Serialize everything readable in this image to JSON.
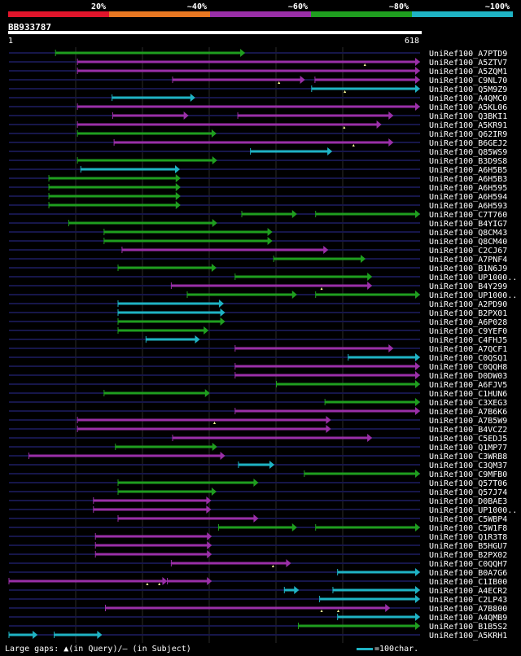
{
  "colors": {
    "background": "#000000",
    "identity_20": "#e0152b",
    "identity_40": "#e87722",
    "identity_60": "#9a2fa8",
    "identity_80": "#1f9e1f",
    "identity_100": "#1fb3c4",
    "track": "#16164a",
    "text": "#ffffff",
    "gap_marker": "#ffff99",
    "grid": "#2a2a2a"
  },
  "header": {
    "bands": [
      "20%",
      "~40%",
      "~60%",
      "~80%",
      "~100%"
    ],
    "query_id": "BB933787",
    "ruler_start": "1",
    "ruler_end": "618"
  },
  "query_length": 618,
  "hits": [
    {
      "id": "UniRef100_A7PTD9",
      "color": "green",
      "segs": [
        [
          70,
          355
        ]
      ],
      "gaps": []
    },
    {
      "id": "UniRef100_A5ZTV7",
      "color": "purple",
      "segs": [
        [
          103,
          618
        ]
      ],
      "gaps": [
        535
      ]
    },
    {
      "id": "UniRef100_A5ZQM1",
      "color": "purple",
      "segs": [
        [
          103,
          618
        ]
      ],
      "gaps": []
    },
    {
      "id": "UniRef100_C9NL70",
      "color": "purple",
      "segs": [
        [
          246,
          445
        ],
        [
          460,
          618
        ]
      ],
      "gaps": [
        406
      ]
    },
    {
      "id": "UniRef100_Q5M9Z9",
      "color": "cyan",
      "segs": [
        [
          455,
          618
        ]
      ],
      "gaps": [
        505
      ]
    },
    {
      "id": "UniRef100_A4QMC0",
      "color": "cyan",
      "segs": [
        [
          155,
          280
        ]
      ],
      "gaps": []
    },
    {
      "id": "UniRef100_A5KL06",
      "color": "purple",
      "segs": [
        [
          103,
          618
        ]
      ],
      "gaps": []
    },
    {
      "id": "UniRef100_Q3BKI1",
      "color": "purple",
      "segs": [
        [
          156,
          270
        ],
        [
          344,
          578
        ]
      ],
      "gaps": []
    },
    {
      "id": "UniRef100_A5KR91",
      "color": "purple",
      "segs": [
        [
          103,
          560
        ]
      ],
      "gaps": [
        504
      ]
    },
    {
      "id": "UniRef100_Q62IR9",
      "color": "green",
      "segs": [
        [
          103,
          312
        ]
      ],
      "gaps": []
    },
    {
      "id": "UniRef100_B6GEJ2",
      "color": "purple",
      "segs": [
        [
          158,
          578
        ]
      ],
      "gaps": [
        518
      ]
    },
    {
      "id": "UniRef100_Q85WS9",
      "color": "cyan",
      "segs": [
        [
          363,
          486
        ]
      ],
      "gaps": []
    },
    {
      "id": "UniRef100_B3D9S8",
      "color": "green",
      "segs": [
        [
          103,
          313
        ]
      ],
      "gaps": []
    },
    {
      "id": "UniRef100_A6H5B5",
      "color": "cyan",
      "segs": [
        [
          108,
          257
        ]
      ],
      "gaps": []
    },
    {
      "id": "UniRef100_A6H5B3",
      "color": "green",
      "segs": [
        [
          60,
          258
        ]
      ],
      "gaps": []
    },
    {
      "id": "UniRef100_A6H595",
      "color": "green",
      "segs": [
        [
          60,
          258
        ]
      ],
      "gaps": []
    },
    {
      "id": "UniRef100_A6H594",
      "color": "green",
      "segs": [
        [
          60,
          258
        ]
      ],
      "gaps": []
    },
    {
      "id": "UniRef100_A6H593",
      "color": "green",
      "segs": [
        [
          60,
          258
        ]
      ],
      "gaps": []
    },
    {
      "id": "UniRef100_C7T760",
      "color": "green",
      "segs": [
        [
          350,
          433
        ],
        [
          461,
          618
        ]
      ],
      "gaps": []
    },
    {
      "id": "UniRef100_B4YIG7",
      "color": "green",
      "segs": [
        [
          90,
          313
        ]
      ],
      "gaps": []
    },
    {
      "id": "UniRef100_Q8CM43",
      "color": "green",
      "segs": [
        [
          143,
          396
        ]
      ],
      "gaps": []
    },
    {
      "id": "UniRef100_Q8CM40",
      "color": "green",
      "segs": [
        [
          143,
          396
        ]
      ],
      "gaps": []
    },
    {
      "id": "UniRef100_C2CJ67",
      "color": "purple",
      "segs": [
        [
          170,
          480
        ]
      ],
      "gaps": []
    },
    {
      "id": "UniRef100_A7PNF4",
      "color": "green",
      "segs": [
        [
          398,
          536
        ]
      ],
      "gaps": []
    },
    {
      "id": "UniRef100_B1N6J9",
      "color": "green",
      "segs": [
        [
          164,
          312
        ]
      ],
      "gaps": []
    },
    {
      "id": "UniRef100_UP1000..",
      "color": "green",
      "segs": [
        [
          340,
          546
        ]
      ],
      "gaps": []
    },
    {
      "id": "UniRef100_B4Y299",
      "color": "purple",
      "segs": [
        [
          244,
          546
        ]
      ],
      "gaps": [
        470
      ]
    },
    {
      "id": "UniRef100_UP1000..",
      "color": "green",
      "segs": [
        [
          268,
          433
        ],
        [
          461,
          618
        ]
      ],
      "gaps": []
    },
    {
      "id": "UniRef100_A2PD90",
      "color": "cyan",
      "segs": [
        [
          164,
          323
        ]
      ],
      "gaps": []
    },
    {
      "id": "UniRef100_B2PX01",
      "color": "cyan",
      "segs": [
        [
          164,
          325
        ]
      ],
      "gaps": []
    },
    {
      "id": "UniRef100_A6P028",
      "color": "green",
      "segs": [
        [
          164,
          325
        ]
      ],
      "gaps": []
    },
    {
      "id": "UniRef100_C9YEF0",
      "color": "green",
      "segs": [
        [
          164,
          300
        ]
      ],
      "gaps": []
    },
    {
      "id": "UniRef100_C4FHJ5",
      "color": "cyan",
      "segs": [
        [
          206,
          287
        ]
      ],
      "gaps": []
    },
    {
      "id": "UniRef100_A7QCF1",
      "color": "purple",
      "segs": [
        [
          340,
          578
        ]
      ],
      "gaps": []
    },
    {
      "id": "UniRef100_C0QSQ1",
      "color": "cyan",
      "segs": [
        [
          510,
          618
        ]
      ],
      "gaps": []
    },
    {
      "id": "UniRef100_C0QQH8",
      "color": "purple",
      "segs": [
        [
          340,
          618
        ]
      ],
      "gaps": []
    },
    {
      "id": "UniRef100_D0DW03",
      "color": "purple",
      "segs": [
        [
          340,
          618
        ]
      ],
      "gaps": []
    },
    {
      "id": "UniRef100_A6FJV5",
      "color": "green",
      "segs": [
        [
          402,
          618
        ]
      ],
      "gaps": []
    },
    {
      "id": "UniRef100_C1HUN6",
      "color": "green",
      "segs": [
        [
          143,
          302
        ]
      ],
      "gaps": []
    },
    {
      "id": "UniRef100_C3XEG3",
      "color": "green",
      "segs": [
        [
          475,
          618
        ]
      ],
      "gaps": []
    },
    {
      "id": "UniRef100_A7B6K6",
      "color": "purple",
      "segs": [
        [
          340,
          618
        ]
      ],
      "gaps": []
    },
    {
      "id": "UniRef100_A7B5W9",
      "color": "purple",
      "segs": [
        [
          103,
          484
        ]
      ],
      "gaps": [
        309
      ]
    },
    {
      "id": "UniRef100_B4VCZ2",
      "color": "purple",
      "segs": [
        [
          103,
          484
        ]
      ],
      "gaps": []
    },
    {
      "id": "UniRef100_C5EDJ5",
      "color": "purple",
      "segs": [
        [
          246,
          546
        ]
      ],
      "gaps": []
    },
    {
      "id": "UniRef100_Q1MP77",
      "color": "green",
      "segs": [
        [
          160,
          313
        ]
      ],
      "gaps": []
    },
    {
      "id": "UniRef100_C3WRB8",
      "color": "purple",
      "segs": [
        [
          30,
          325
        ]
      ],
      "gaps": []
    },
    {
      "id": "UniRef100_C3QM37",
      "color": "cyan",
      "segs": [
        [
          345,
          399
        ]
      ],
      "gaps": []
    },
    {
      "id": "UniRef100_C9MFB0",
      "color": "green",
      "segs": [
        [
          444,
          618
        ]
      ],
      "gaps": []
    },
    {
      "id": "UniRef100_Q57T06",
      "color": "green",
      "segs": [
        [
          164,
          375
        ]
      ],
      "gaps": []
    },
    {
      "id": "UniRef100_Q57J74",
      "color": "green",
      "segs": [
        [
          164,
          312
        ]
      ],
      "gaps": []
    },
    {
      "id": "UniRef100_D0BAE3",
      "color": "purple",
      "segs": [
        [
          127,
          304
        ]
      ],
      "gaps": []
    },
    {
      "id": "UniRef100_UP1000..",
      "color": "purple",
      "segs": [
        [
          127,
          304
        ]
      ],
      "gaps": []
    },
    {
      "id": "UniRef100_C5WBP4",
      "color": "purple",
      "segs": [
        [
          164,
          375
        ]
      ],
      "gaps": []
    },
    {
      "id": "UniRef100_C5W1F8",
      "color": "green",
      "segs": [
        [
          315,
          433
        ],
        [
          461,
          618
        ]
      ],
      "gaps": []
    },
    {
      "id": "UniRef100_Q1R3T8",
      "color": "purple",
      "segs": [
        [
          130,
          305
        ]
      ],
      "gaps": []
    },
    {
      "id": "UniRef100_B5HGU7",
      "color": "purple",
      "segs": [
        [
          130,
          305
        ]
      ],
      "gaps": []
    },
    {
      "id": "UniRef100_B2PX02",
      "color": "purple",
      "segs": [
        [
          130,
          305
        ]
      ],
      "gaps": []
    },
    {
      "id": "UniRef100_C0QQH7",
      "color": "purple",
      "segs": [
        [
          244,
          424
        ]
      ],
      "gaps": [
        397
      ]
    },
    {
      "id": "UniRef100_B0A7G6",
      "color": "cyan",
      "segs": [
        [
          494,
          618
        ]
      ],
      "gaps": []
    },
    {
      "id": "UniRef100_C1IB00",
      "color": "purple",
      "segs": [
        [
          0,
          238
        ],
        [
          238,
          305
        ]
      ],
      "gaps": [
        208,
        226
      ]
    },
    {
      "id": "UniRef100_A4ECR2",
      "color": "cyan",
      "segs": [
        [
          414,
          436
        ],
        [
          487,
          618
        ]
      ],
      "gaps": []
    },
    {
      "id": "UniRef100_C2LP43",
      "color": "cyan",
      "segs": [
        [
          467,
          618
        ]
      ],
      "gaps": []
    },
    {
      "id": "UniRef100_A7B800",
      "color": "purple",
      "segs": [
        [
          145,
          573
        ]
      ],
      "gaps": [
        470,
        495
      ]
    },
    {
      "id": "UniRef100_A4QMB9",
      "color": "cyan",
      "segs": [
        [
          494,
          618
        ]
      ],
      "gaps": []
    },
    {
      "id": "UniRef100_B1B5S2",
      "color": "green",
      "segs": [
        [
          435,
          618
        ]
      ],
      "gaps": []
    },
    {
      "id": "UniRef100_A5KRH1",
      "color": "cyan",
      "segs": [
        [
          0,
          43
        ],
        [
          68,
          140
        ]
      ],
      "gaps": []
    }
  ],
  "footer": {
    "gaps_legend": "Large gaps: ▲(in Query)/– (in Subject)",
    "scale_legend": "=100char."
  }
}
